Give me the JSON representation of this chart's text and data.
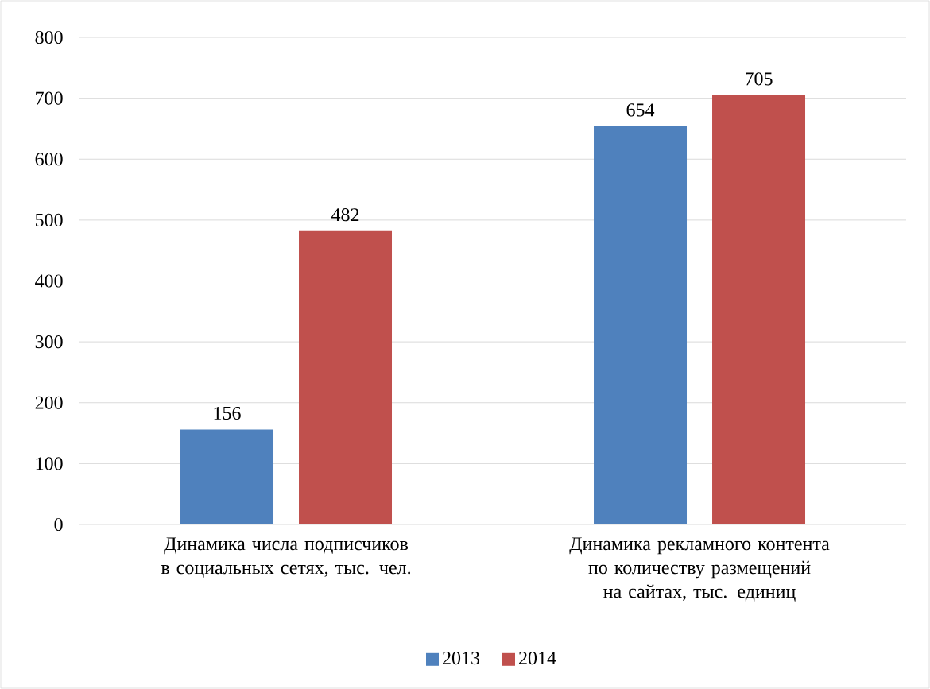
{
  "chart_data": {
    "type": "bar",
    "categories": [
      "Динамика числа подписчиков в социальных сетях, тыс. чел.",
      "Динамика рекламного контента по количеству размещений на сайтах, тыс. единиц"
    ],
    "series": [
      {
        "name": "2013",
        "color": "#4f81bd",
        "values": [
          156,
          654
        ]
      },
      {
        "name": "2014",
        "color": "#c0504d",
        "values": [
          482,
          705
        ]
      }
    ],
    "ylim": [
      0,
      800
    ],
    "yticks": [
      0,
      100,
      200,
      300,
      400,
      500,
      600,
      700,
      800
    ],
    "grid": "y",
    "legend": "bottom",
    "data_labels": true
  }
}
